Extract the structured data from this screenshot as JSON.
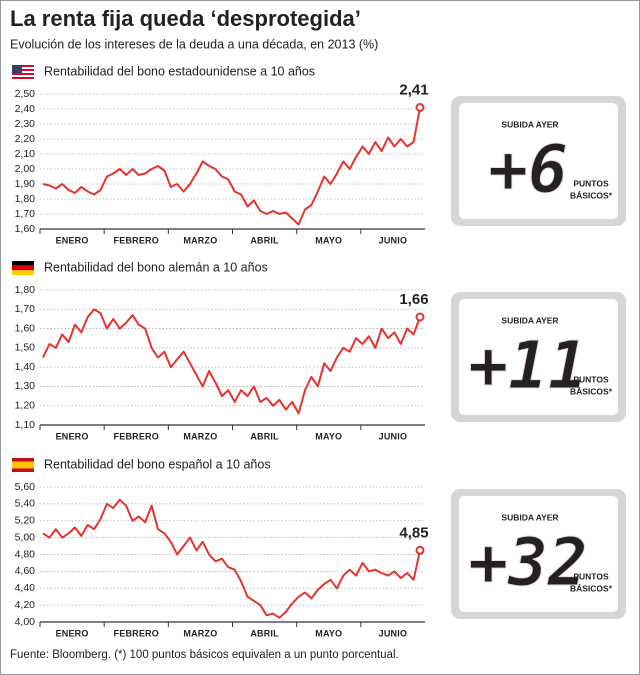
{
  "header": {
    "title": "La renta fija queda ‘desprotegida’",
    "subtitle": "Evolución de los intereses de la deuda a una década, en 2013 (%)"
  },
  "source": "Fuente: Bloomberg. (*) 100 puntos básicos equivalen a un punto porcentual.",
  "chart_data": [
    {
      "type": "line",
      "title": "Rentabilidad del bono estadounidense a 10 años",
      "color": "#e3342f",
      "grid": true,
      "xticks": [
        "ENERO",
        "FEBRERO",
        "MARZO",
        "ABRIL",
        "MAYO",
        "JUNIO"
      ],
      "values": [
        1.9,
        1.89,
        1.87,
        1.9,
        1.86,
        1.84,
        1.88,
        1.85,
        1.83,
        1.86,
        1.95,
        1.97,
        2.0,
        1.96,
        2.0,
        1.96,
        1.97,
        2.0,
        2.02,
        1.99,
        1.88,
        1.9,
        1.85,
        1.9,
        1.97,
        2.05,
        2.02,
        2.0,
        1.95,
        1.93,
        1.85,
        1.83,
        1.75,
        1.79,
        1.72,
        1.7,
        1.72,
        1.7,
        1.71,
        1.67,
        1.63,
        1.73,
        1.76,
        1.85,
        1.95,
        1.9,
        1.97,
        2.05,
        2.0,
        2.08,
        2.15,
        2.1,
        2.18,
        2.12,
        2.21,
        2.15,
        2.2,
        2.15,
        2.18,
        2.41
      ],
      "value_labels": [
        null,
        null,
        null,
        null,
        null,
        null,
        null,
        null,
        null,
        null,
        null,
        null,
        null,
        null,
        null,
        null,
        null,
        null,
        null,
        null,
        null,
        null,
        null,
        null,
        null,
        null,
        null,
        null,
        null,
        null,
        null,
        null,
        null,
        null,
        null,
        null,
        null,
        null,
        null,
        null,
        null,
        null,
        null,
        null,
        null,
        null,
        null,
        null,
        null,
        null,
        null,
        null,
        null,
        null,
        null,
        null,
        null,
        null,
        null,
        "2,41"
      ],
      "ylim": [
        1.6,
        2.5
      ],
      "yticks": [
        {
          "value": 1.6,
          "label": "1,60"
        },
        {
          "value": 1.7,
          "label": "1,70"
        },
        {
          "value": 1.8,
          "label": "1,80"
        },
        {
          "value": 1.9,
          "label": "1,90"
        },
        {
          "value": 2.0,
          "label": "2,00"
        },
        {
          "value": 2.1,
          "label": "2,10"
        },
        {
          "value": 2.2,
          "label": "2,20"
        },
        {
          "value": 2.3,
          "label": "2,30"
        },
        {
          "value": 2.4,
          "label": "2,40"
        },
        {
          "value": 2.5,
          "label": "2,50"
        }
      ],
      "annotation": {
        "label": "SUBIDA AYER",
        "value": "+6",
        "unit_lines": [
          "PUNTOS",
          "BÁSICOS*"
        ]
      }
    },
    {
      "type": "line",
      "title": "Rentabilidad del bono alemán a 10 años",
      "color": "#e3342f",
      "grid": true,
      "xticks": [
        "ENERO",
        "FEBRERO",
        "MARZO",
        "ABRIL",
        "MAYO",
        "JUNIO"
      ],
      "values": [
        1.45,
        1.52,
        1.5,
        1.57,
        1.53,
        1.62,
        1.58,
        1.66,
        1.7,
        1.68,
        1.6,
        1.65,
        1.6,
        1.63,
        1.67,
        1.62,
        1.6,
        1.5,
        1.45,
        1.48,
        1.4,
        1.44,
        1.48,
        1.42,
        1.36,
        1.3,
        1.38,
        1.32,
        1.25,
        1.28,
        1.22,
        1.28,
        1.25,
        1.3,
        1.22,
        1.24,
        1.2,
        1.23,
        1.18,
        1.22,
        1.16,
        1.28,
        1.35,
        1.3,
        1.42,
        1.38,
        1.45,
        1.5,
        1.48,
        1.55,
        1.52,
        1.56,
        1.5,
        1.6,
        1.55,
        1.58,
        1.52,
        1.6,
        1.57,
        1.66
      ],
      "value_labels": [
        null,
        null,
        null,
        null,
        null,
        null,
        null,
        null,
        null,
        null,
        null,
        null,
        null,
        null,
        null,
        null,
        null,
        null,
        null,
        null,
        null,
        null,
        null,
        null,
        null,
        null,
        null,
        null,
        null,
        null,
        null,
        null,
        null,
        null,
        null,
        null,
        null,
        null,
        null,
        null,
        null,
        null,
        null,
        null,
        null,
        null,
        null,
        null,
        null,
        null,
        null,
        null,
        null,
        null,
        null,
        null,
        null,
        null,
        null,
        "1,66"
      ],
      "ylim": [
        1.1,
        1.8
      ],
      "yticks": [
        {
          "value": 1.1,
          "label": "1,10"
        },
        {
          "value": 1.2,
          "label": "1,20"
        },
        {
          "value": 1.3,
          "label": "1,30"
        },
        {
          "value": 1.4,
          "label": "1,40"
        },
        {
          "value": 1.5,
          "label": "1,50"
        },
        {
          "value": 1.6,
          "label": "1,60"
        },
        {
          "value": 1.7,
          "label": "1,70"
        },
        {
          "value": 1.8,
          "label": "1,80"
        }
      ],
      "annotation": {
        "label": "SUBIDA AYER",
        "value": "+11",
        "unit_lines": [
          "PUNTOS",
          "BÁSICOS*"
        ]
      }
    },
    {
      "type": "line",
      "title": "Rentabilidad del bono español a 10 años",
      "color": "#e3342f",
      "grid": true,
      "xticks": [
        "ENERO",
        "FEBRERO",
        "MARZO",
        "ABRIL",
        "MAYO",
        "JUNIO"
      ],
      "values": [
        5.05,
        5.0,
        5.1,
        5.0,
        5.05,
        5.12,
        5.02,
        5.15,
        5.1,
        5.22,
        5.4,
        5.35,
        5.45,
        5.38,
        5.2,
        5.25,
        5.18,
        5.38,
        5.1,
        5.05,
        4.95,
        4.8,
        4.9,
        5.0,
        4.85,
        4.95,
        4.8,
        4.72,
        4.75,
        4.65,
        4.62,
        4.48,
        4.3,
        4.25,
        4.2,
        4.08,
        4.1,
        4.05,
        4.12,
        4.22,
        4.3,
        4.35,
        4.28,
        4.38,
        4.45,
        4.5,
        4.4,
        4.55,
        4.62,
        4.55,
        4.7,
        4.6,
        4.62,
        4.58,
        4.55,
        4.6,
        4.52,
        4.58,
        4.5,
        4.85
      ],
      "value_labels": [
        null,
        null,
        null,
        null,
        null,
        null,
        null,
        null,
        null,
        null,
        null,
        null,
        null,
        null,
        null,
        null,
        null,
        null,
        null,
        null,
        null,
        null,
        null,
        null,
        null,
        null,
        null,
        null,
        null,
        null,
        null,
        null,
        null,
        null,
        null,
        null,
        null,
        null,
        null,
        null,
        null,
        null,
        null,
        null,
        null,
        null,
        null,
        null,
        null,
        null,
        null,
        null,
        null,
        null,
        null,
        null,
        null,
        null,
        null,
        "4,85"
      ],
      "ylim": [
        4.0,
        5.6
      ],
      "yticks": [
        {
          "value": 4.0,
          "label": "4,00"
        },
        {
          "value": 4.2,
          "label": "4,20"
        },
        {
          "value": 4.4,
          "label": "4,40"
        },
        {
          "value": 4.6,
          "label": "4,60"
        },
        {
          "value": 4.8,
          "label": "4,80"
        },
        {
          "value": 5.0,
          "label": "5,00"
        },
        {
          "value": 5.2,
          "label": "5,20"
        },
        {
          "value": 5.4,
          "label": "5,40"
        },
        {
          "value": 5.6,
          "label": "5,60"
        }
      ],
      "annotation": {
        "label": "SUBIDA AYER",
        "value": "+32",
        "unit_lines": [
          "PUNTOS",
          "BÁSICOS*"
        ]
      }
    }
  ]
}
